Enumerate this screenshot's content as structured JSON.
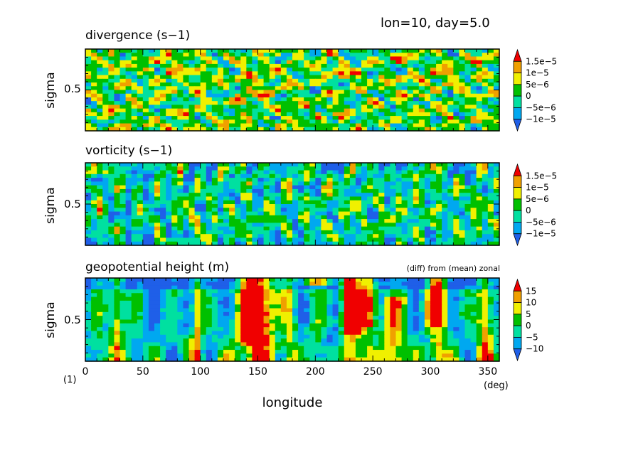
{
  "header": {
    "title": "lon=10, day=5.0"
  },
  "chart_data": [
    {
      "type": "heatmap",
      "title": "divergence (s−1)",
      "xlabel": "longitude",
      "ylabel": "sigma",
      "xlim": [
        0,
        360
      ],
      "ylim": [
        0,
        1
      ],
      "y_ticks": [
        0.5
      ],
      "y_tick_labels": [
        "0.5"
      ],
      "levels": [
        -1e-05,
        -5e-06,
        0,
        5e-06,
        1e-05,
        1.5e-05
      ],
      "colorbar_labels": [
        "1.5e−5",
        "1e−5",
        "5e−6",
        "0",
        "−5e−6",
        "−1e−5"
      ],
      "colors": [
        "#1f5fe8",
        "#00a8f0",
        "#00e0a0",
        "#00c000",
        "#f0f000",
        "#f0a000",
        "#f00000"
      ],
      "pattern": "small-scale noisy cells",
      "seed": 11
    },
    {
      "type": "heatmap",
      "title": "vorticity (s−1)",
      "xlabel": "longitude",
      "ylabel": "sigma",
      "xlim": [
        0,
        360
      ],
      "ylim": [
        0,
        1
      ],
      "y_ticks": [
        0.5
      ],
      "y_tick_labels": [
        "0.5"
      ],
      "levels": [
        -1e-05,
        -5e-06,
        0,
        5e-06,
        1e-05,
        1.5e-05
      ],
      "colorbar_labels": [
        "1.5e−5",
        "1e−5",
        "5e−6",
        "0",
        "−5e−6",
        "−1e−5"
      ],
      "colors": [
        "#1f5fe8",
        "#00a8f0",
        "#00e0a0",
        "#00c000",
        "#f0f000",
        "#f0a000",
        "#f00000"
      ],
      "pattern": "vertically elongated streaks, mostly blue",
      "seed": 29
    },
    {
      "type": "heatmap",
      "title": "geopotential height (m)",
      "annotation": "(diff) from (mean) zonal",
      "xlabel": "longitude",
      "ylabel": "sigma",
      "xlim": [
        0,
        360
      ],
      "ylim": [
        0,
        1
      ],
      "x_ticks": [
        0,
        50,
        100,
        150,
        200,
        250,
        300,
        350
      ],
      "x_tick_labels": [
        "0",
        "50",
        "100",
        "150",
        "200",
        "250",
        "300",
        "350"
      ],
      "x_unit": "(deg)",
      "y_ticks": [
        0.5
      ],
      "y_tick_labels": [
        "0.5"
      ],
      "levels": [
        -10,
        -5,
        0,
        5,
        10,
        15
      ],
      "colorbar_labels": [
        "15",
        "10",
        "5",
        "0",
        "−5",
        "−10"
      ],
      "colors": [
        "#1f5fe8",
        "#00a8f0",
        "#00e0a0",
        "#00c000",
        "#f0f000",
        "#f0a000",
        "#f00000"
      ],
      "pattern": "large vertical columns, warm anomalies near 140, 230, 300 deg",
      "seed": 47
    }
  ],
  "footer": {
    "page_number": "(1)"
  }
}
